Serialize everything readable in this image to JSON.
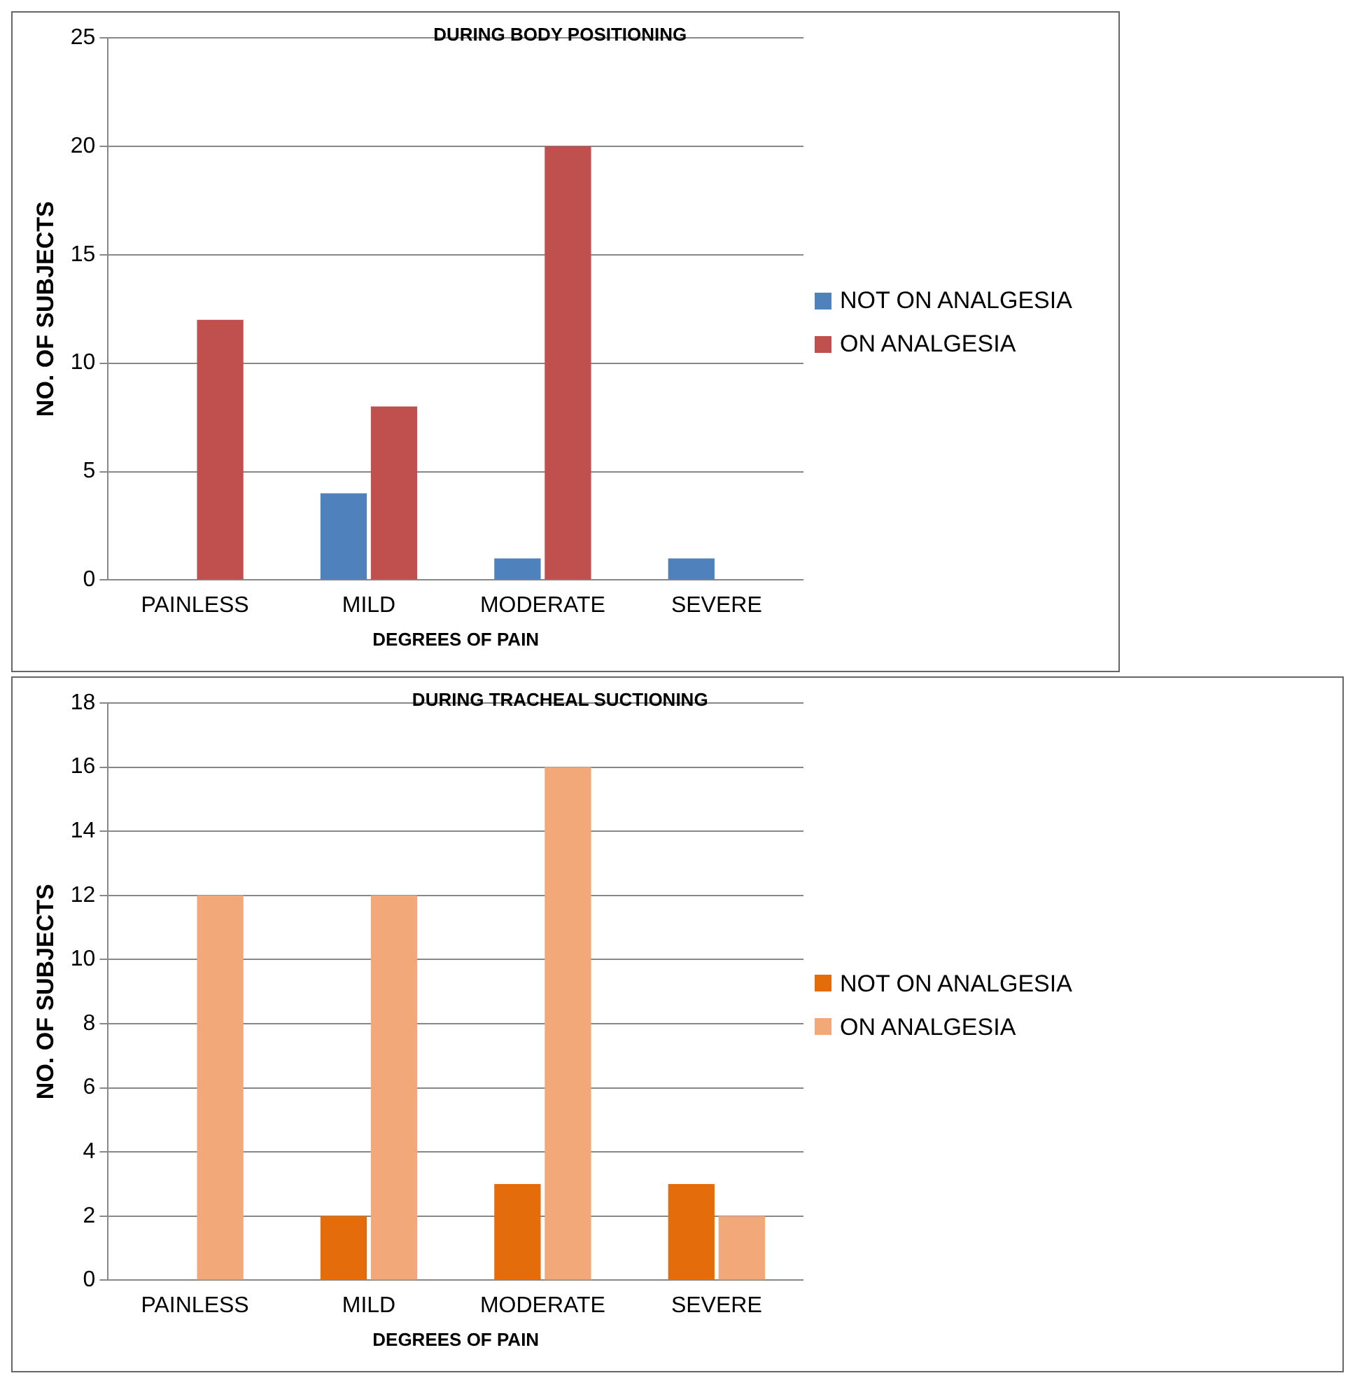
{
  "chart_data": [
    {
      "type": "bar",
      "title": "DURING BODY POSITIONING",
      "xlabel": "DEGREES OF PAIN",
      "ylabel": "NO. OF SUBJECTS",
      "categories": [
        "PAINLESS",
        "MILD",
        "MODERATE",
        "SEVERE"
      ],
      "series": [
        {
          "name": "NOT ON ANALGESIA",
          "color": "#4f81bd",
          "values": [
            0,
            4,
            1,
            1
          ]
        },
        {
          "name": "ON ANALGESIA",
          "color": "#c0504d",
          "values": [
            12,
            8,
            20,
            0
          ]
        }
      ],
      "ylim": [
        0,
        25
      ],
      "yticks": [
        0,
        5,
        10,
        15,
        20,
        25
      ],
      "grid": "y",
      "legend": "right"
    },
    {
      "type": "bar",
      "title": "DURING TRACHEAL SUCTIONING",
      "xlabel": "DEGREES OF PAIN",
      "ylabel": "NO. OF SUBJECTS",
      "categories": [
        "PAINLESS",
        "MILD",
        "MODERATE",
        "SEVERE"
      ],
      "series": [
        {
          "name": "NOT ON ANALGESIA",
          "color": "#e46c0a",
          "values": [
            0,
            2,
            3,
            3
          ]
        },
        {
          "name": "ON ANALGESIA",
          "color": "#f2a878",
          "values": [
            12,
            12,
            16,
            2
          ]
        }
      ],
      "ylim": [
        0,
        18
      ],
      "yticks": [
        0,
        2,
        4,
        6,
        8,
        10,
        12,
        14,
        16,
        18
      ],
      "grid": "y",
      "legend": "right"
    }
  ]
}
